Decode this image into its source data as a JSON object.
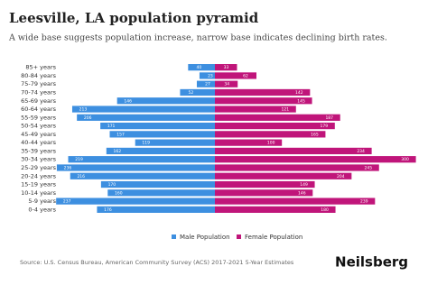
{
  "chart_data": {
    "type": "pyramid",
    "title": "Leesville, LA population pyramid",
    "subtitle": "A wide base suggests population increase, narrow base indicates declining birth rates.",
    "categories": [
      "85+ years",
      "80-84 years",
      "75-79 years",
      "70-74 years",
      "65-69 years",
      "60-64 years",
      "55-59 years",
      "50-54 years",
      "45-49 years",
      "40-44 years",
      "35-39 years",
      "30-34 years",
      "25-29 years",
      "20-24 years",
      "15-19 years",
      "10-14 years",
      "5-9 years",
      "0-4 years"
    ],
    "series": [
      {
        "name": "Male Population",
        "color": "#3d8fe0",
        "values": [
          40,
          23,
          27,
          52,
          146,
          213,
          206,
          171,
          157,
          119,
          162,
          219,
          236,
          216,
          170,
          160,
          237,
          176
        ]
      },
      {
        "name": "Female Population",
        "color": "#c0157a",
        "values": [
          33,
          62,
          34,
          142,
          145,
          121,
          187,
          179,
          165,
          100,
          234,
          300,
          245,
          204,
          149,
          146,
          239,
          180
        ]
      }
    ],
    "xlim": [
      -310,
      310
    ],
    "source": "Source: U.S. Census Bureau, American Community Survey (ACS) 2017-2021 5-Year Estimates",
    "brand": "Neilsberg"
  }
}
